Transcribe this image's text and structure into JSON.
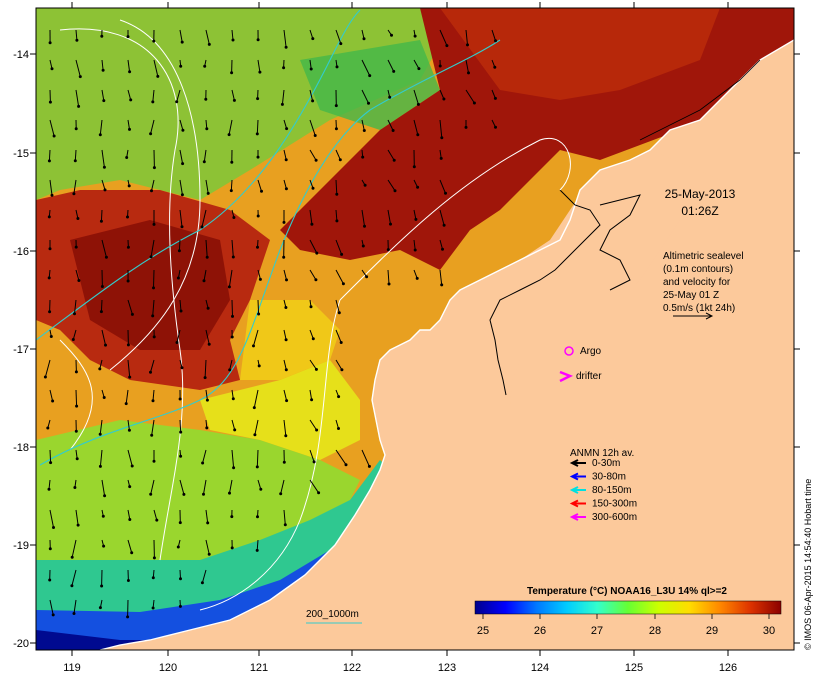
{
  "map": {
    "date_line1": "25-May-2013",
    "date_line2": "01:26Z",
    "altimetry_lines": [
      "Altimetric sealevel",
      "(0.1m contours)",
      "and velocity for",
      "25-May 01 Z",
      "0.5m/s (1kt 24h)"
    ],
    "argo_label": "Argo",
    "drifter_label": "drifter",
    "legend_title": "ANMN 12h av.",
    "legend": [
      {
        "label": "0-30m",
        "color": "#000000"
      },
      {
        "label": "30-80m",
        "color": "#0000ff"
      },
      {
        "label": "80-150m",
        "color": "#00e0e0"
      },
      {
        "label": "150-300m",
        "color": "#ff0000"
      },
      {
        "label": "300-600m",
        "color": "#ff00ff"
      }
    ],
    "isobath_label": "200_1000m",
    "colorbar_title": "Temperature (°C) NOAA16_L3U 14% ql>=2",
    "colorbar_ticks": [
      "25",
      "26",
      "27",
      "28",
      "29",
      "30"
    ],
    "colorbar_colors": [
      "#00008b",
      "#0000ff",
      "#0077ff",
      "#00ccff",
      "#33ffcc",
      "#66ff33",
      "#ccff00",
      "#ffdd00",
      "#ff8800",
      "#dd3300",
      "#8b0000"
    ],
    "credit": "© IMOS 06-Apr-2015 14:54:40 Hobart time",
    "lon_ticks": [
      "119",
      "120",
      "121",
      "122",
      "123",
      "124",
      "125",
      "126"
    ],
    "lat_ticks": [
      "-14",
      "-15",
      "-16",
      "-17",
      "-18",
      "-19",
      "-20"
    ],
    "land_color": "#fcc99b"
  }
}
